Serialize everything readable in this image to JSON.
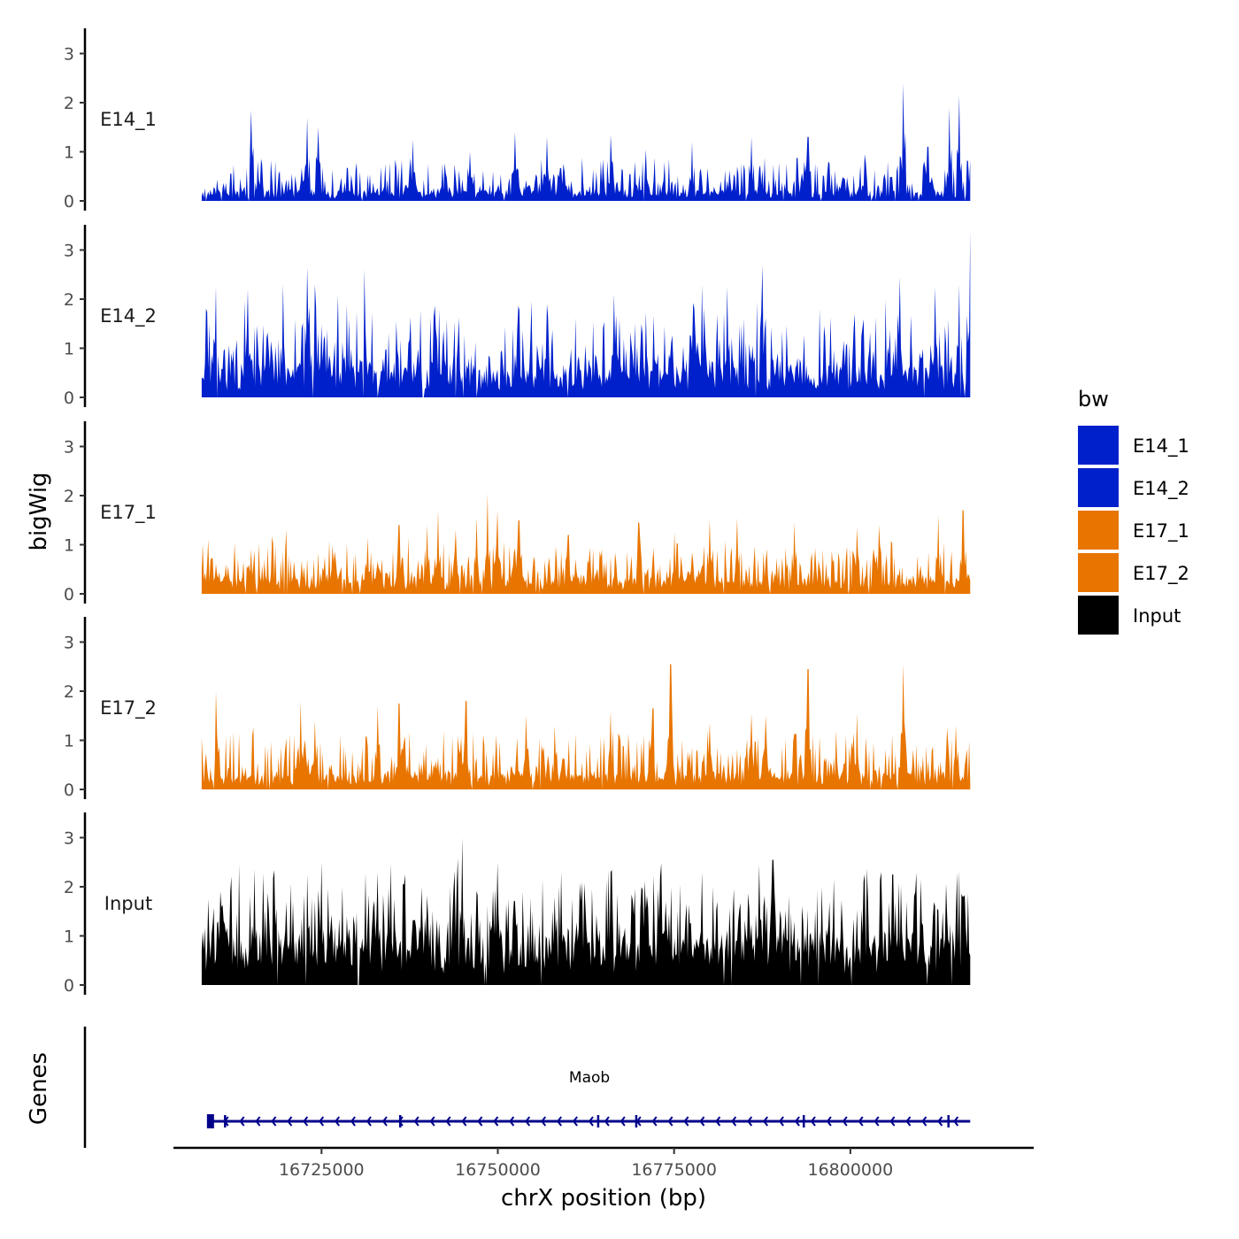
{
  "chart_data": {
    "type": "area",
    "title": "",
    "region": {
      "chromosome": "chrX",
      "start": 16708000,
      "end": 16817000
    },
    "xlabel": "chrX position (bp)",
    "ylabel": "bigWig",
    "xlim": [
      16704000,
      16826000
    ],
    "ylim": [
      0,
      3.5
    ],
    "x_ticks": [
      16725000,
      16750000,
      16775000,
      16800000
    ],
    "x_tick_labels": [
      "16725000",
      "16750000",
      "16775000",
      "16800000"
    ],
    "y_ticks": [
      0,
      1,
      2,
      3
    ],
    "y_tick_labels": [
      "0",
      "1",
      "2",
      "3"
    ],
    "grid": false,
    "legend": {
      "title": "bw",
      "position": "right",
      "entries": [
        {
          "name": "E14_1",
          "color": "#0020CC"
        },
        {
          "name": "E14_2",
          "color": "#0020CC"
        },
        {
          "name": "E17_1",
          "color": "#E87500"
        },
        {
          "name": "E17_2",
          "color": "#E87500"
        },
        {
          "name": "Input",
          "color": "#000000"
        }
      ]
    },
    "series": [
      {
        "name": "E14_1",
        "color": "#0020CC",
        "baseline": 0.15,
        "noise": 0.35,
        "peaks": [
          [
            16715000,
            1.85
          ],
          [
            16723000,
            1.7
          ],
          [
            16724500,
            1.5
          ],
          [
            16738000,
            1.25
          ],
          [
            16746000,
            1.0
          ],
          [
            16752500,
            1.4
          ],
          [
            16757000,
            1.3
          ],
          [
            16766000,
            1.35
          ],
          [
            16771000,
            1.05
          ],
          [
            16777500,
            1.2
          ],
          [
            16786000,
            1.3
          ],
          [
            16794000,
            1.3
          ],
          [
            16802000,
            0.95
          ],
          [
            16807500,
            2.4
          ],
          [
            16811000,
            1.1
          ],
          [
            16814000,
            1.9
          ],
          [
            16815500,
            2.15
          ]
        ]
      },
      {
        "name": "E14_2",
        "color": "#0020CC",
        "baseline": 0.45,
        "noise": 0.7,
        "peaks": [
          [
            16710000,
            2.25
          ],
          [
            16714500,
            2.2
          ],
          [
            16719500,
            2.3
          ],
          [
            16723000,
            2.65
          ],
          [
            16724000,
            2.3
          ],
          [
            16731000,
            2.6
          ],
          [
            16744000,
            2.3
          ],
          [
            16757000,
            1.9
          ],
          [
            16766500,
            2.1
          ],
          [
            16779000,
            2.3
          ],
          [
            16782500,
            2.25
          ],
          [
            16787500,
            2.7
          ],
          [
            16807000,
            2.45
          ],
          [
            16812000,
            2.25
          ],
          [
            16815500,
            2.3
          ],
          [
            16817000,
            3.4
          ]
        ]
      },
      {
        "name": "E17_1",
        "color": "#E87500",
        "baseline": 0.25,
        "noise": 0.4,
        "peaks": [
          [
            16720000,
            1.3
          ],
          [
            16731500,
            1.15
          ],
          [
            16736000,
            1.4
          ],
          [
            16740000,
            1.4
          ],
          [
            16741500,
            1.7
          ],
          [
            16744000,
            1.3
          ],
          [
            16747000,
            1.55
          ],
          [
            16748500,
            2.05
          ],
          [
            16750000,
            1.7
          ],
          [
            16753000,
            1.5
          ],
          [
            16760000,
            1.2
          ],
          [
            16770000,
            1.45
          ],
          [
            16775000,
            1.25
          ],
          [
            16780000,
            1.5
          ],
          [
            16784000,
            1.55
          ],
          [
            16792000,
            1.45
          ],
          [
            16801000,
            1.35
          ],
          [
            16804000,
            1.4
          ],
          [
            16812500,
            1.6
          ],
          [
            16816000,
            1.7
          ]
        ]
      },
      {
        "name": "E17_2",
        "color": "#E87500",
        "baseline": 0.25,
        "noise": 0.45,
        "peaks": [
          [
            16710000,
            2.0
          ],
          [
            16722000,
            1.8
          ],
          [
            16724000,
            1.4
          ],
          [
            16733000,
            1.7
          ],
          [
            16736000,
            1.75
          ],
          [
            16745500,
            1.8
          ],
          [
            16754000,
            1.5
          ],
          [
            16758000,
            1.3
          ],
          [
            16766000,
            1.6
          ],
          [
            16772000,
            1.65
          ],
          [
            16774500,
            2.55
          ],
          [
            16780000,
            1.35
          ],
          [
            16786000,
            1.55
          ],
          [
            16788000,
            1.5
          ],
          [
            16794000,
            2.45
          ],
          [
            16801000,
            1.55
          ],
          [
            16807500,
            2.55
          ],
          [
            16815000,
            1.3
          ]
        ]
      },
      {
        "name": "Input",
        "color": "#000000",
        "baseline": 0.75,
        "noise": 0.75,
        "peaks": [
          [
            16720000,
            1.7
          ],
          [
            16723000,
            2.25
          ],
          [
            16725000,
            2.5
          ],
          [
            16728000,
            2.0
          ],
          [
            16733000,
            2.3
          ],
          [
            16745000,
            3.0
          ],
          [
            16750000,
            2.5
          ],
          [
            16759000,
            2.3
          ],
          [
            16762000,
            2.1
          ],
          [
            16766000,
            2.3
          ],
          [
            16773000,
            2.2
          ],
          [
            16779000,
            2.3
          ],
          [
            16787000,
            2.45
          ],
          [
            16789000,
            2.55
          ],
          [
            16796000,
            2.0
          ],
          [
            16806000,
            2.25
          ],
          [
            16810000,
            2.15
          ],
          [
            16816000,
            1.8
          ]
        ]
      }
    ],
    "genes": {
      "panel_label": "Genes",
      "items": [
        {
          "name": "Maob",
          "start": 16709000,
          "end": 16817000,
          "strand": "-",
          "color": "#00008B"
        }
      ]
    }
  }
}
